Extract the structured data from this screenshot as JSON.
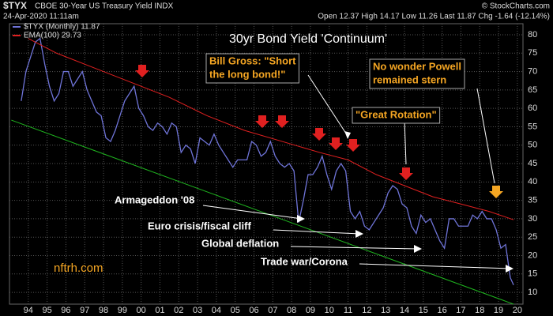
{
  "chart_data": {
    "type": "line",
    "symbol": "$TYX",
    "header_name": "CBOE 30-Year US Treasury Yield INDX",
    "date": "24-Apr-2020 11:11am",
    "quote": "Open 12.37 High 14.17 Low 11.26 Last 11.87 Chg -1.64 (-12.14%)",
    "source": "© StockCharts.com",
    "title": "30yr Bond Yield 'Continuum'",
    "watermark": "nftrh.com",
    "annotations": [
      {
        "lines": [
          "Bill Gross: \"Short",
          "the long bond!\""
        ],
        "style": "boxed"
      },
      {
        "lines": [
          "No wonder Powell",
          "remained stern"
        ],
        "style": "boxed"
      },
      {
        "lines": [
          "\"Great Rotation\""
        ],
        "style": "boxed"
      },
      {
        "lines": [
          "Armageddon '08"
        ],
        "style": "plain"
      },
      {
        "lines": [
          "Euro crisis/fiscal cliff"
        ],
        "style": "plain"
      },
      {
        "lines": [
          "Global deflation"
        ],
        "style": "plain"
      },
      {
        "lines": [
          "Trade war/Corona"
        ],
        "style": "plain"
      }
    ],
    "xlim": [
      1993.5,
      2020.8
    ],
    "ylim": [
      6.8,
      83
    ],
    "grid": true,
    "xticks": [
      {
        "value": 1994.5,
        "label": "94"
      },
      {
        "value": 1995.5,
        "label": "95"
      },
      {
        "value": 1996.5,
        "label": "96"
      },
      {
        "value": 1997.5,
        "label": "97"
      },
      {
        "value": 1998.5,
        "label": "98"
      },
      {
        "value": 1999.5,
        "label": "99"
      },
      {
        "value": 2000.5,
        "label": "00"
      },
      {
        "value": 2001.5,
        "label": "01"
      },
      {
        "value": 2002.5,
        "label": "02"
      },
      {
        "value": 2003.5,
        "label": "03"
      },
      {
        "value": 2004.5,
        "label": "04"
      },
      {
        "value": 2005.5,
        "label": "05"
      },
      {
        "value": 2006.5,
        "label": "06"
      },
      {
        "value": 2007.5,
        "label": "07"
      },
      {
        "value": 2008.5,
        "label": "08"
      },
      {
        "value": 2009.5,
        "label": "09"
      },
      {
        "value": 2010.5,
        "label": "10"
      },
      {
        "value": 2011.5,
        "label": "11"
      },
      {
        "value": 2012.5,
        "label": "12"
      },
      {
        "value": 2013.5,
        "label": "13"
      },
      {
        "value": 2014.5,
        "label": "14"
      },
      {
        "value": 2015.5,
        "label": "15"
      },
      {
        "value": 2016.5,
        "label": "16"
      },
      {
        "value": 2017.5,
        "label": "17"
      },
      {
        "value": 2018.5,
        "label": "18"
      },
      {
        "value": 2019.5,
        "label": "19"
      },
      {
        "value": 2020.5,
        "label": "20"
      }
    ],
    "yticks": [
      10,
      15,
      20,
      25,
      30,
      35,
      40,
      45,
      50,
      55,
      60,
      65,
      70,
      75,
      80
    ],
    "series": [
      {
        "name": "$TYX (Monthly) 11.87",
        "color": "#6f74d8",
        "x": [
          1994.125,
          1994.375,
          1994.625,
          1994.875,
          1995.125,
          1995.375,
          1995.625,
          1995.875,
          1996.125,
          1996.375,
          1996.625,
          1996.875,
          1997.125,
          1997.375,
          1997.625,
          1997.875,
          1998.125,
          1998.375,
          1998.625,
          1998.875,
          1999.125,
          1999.375,
          1999.625,
          1999.875,
          2000.125,
          2000.375,
          2000.625,
          2000.875,
          2001.125,
          2001.375,
          2001.625,
          2001.875,
          2002.125,
          2002.375,
          2002.625,
          2002.875,
          2003.125,
          2003.375,
          2003.625,
          2003.875,
          2004.125,
          2004.375,
          2004.625,
          2004.875,
          2005.125,
          2005.375,
          2005.625,
          2005.875,
          2006.125,
          2006.375,
          2006.625,
          2006.875,
          2007.125,
          2007.375,
          2007.625,
          2007.875,
          2008.125,
          2008.375,
          2008.625,
          2008.875,
          2009.125,
          2009.375,
          2009.625,
          2009.875,
          2010.125,
          2010.375,
          2010.625,
          2010.875,
          2011.125,
          2011.375,
          2011.625,
          2011.875,
          2012.125,
          2012.375,
          2012.625,
          2012.875,
          2013.125,
          2013.375,
          2013.625,
          2013.875,
          2014.125,
          2014.375,
          2014.625,
          2014.875,
          2015.125,
          2015.375,
          2015.625,
          2015.875,
          2016.125,
          2016.375,
          2016.625,
          2016.875,
          2017.125,
          2017.375,
          2017.625,
          2017.875,
          2018.125,
          2018.375,
          2018.625,
          2018.875,
          2019.125,
          2019.375,
          2019.625,
          2019.875,
          2020.125,
          2020.3
        ],
        "values": [
          62,
          70,
          74,
          78,
          79,
          72,
          66,
          62,
          64,
          70,
          70,
          66,
          68,
          70,
          65,
          62,
          59,
          58,
          52,
          51,
          54,
          58,
          62,
          64,
          66,
          60,
          58,
          55,
          54,
          56,
          55,
          53,
          56,
          55,
          48,
          50,
          49,
          45,
          52,
          51,
          50,
          53,
          50,
          48,
          46,
          44,
          46,
          46,
          46,
          51,
          50,
          47,
          48,
          51,
          47,
          45,
          44,
          45,
          43,
          29,
          35,
          42,
          42,
          44,
          47,
          42,
          38,
          43,
          45,
          43,
          32,
          30,
          32,
          28,
          27,
          29,
          31,
          33,
          37,
          39,
          38,
          34,
          33,
          28,
          26,
          31,
          29,
          30,
          27,
          24,
          22,
          30,
          30,
          28,
          28,
          28,
          31,
          30,
          32,
          30,
          30,
          27,
          22,
          23,
          14,
          12
        ]
      },
      {
        "name": "EMA(100) 29.73",
        "color": "#e02020",
        "x": [
          1994.5,
          1996,
          1998,
          2000,
          2002,
          2004,
          2006,
          2008,
          2010,
          2011.5,
          2013,
          2014.5,
          2016,
          2017.5,
          2019,
          2020.3
        ],
        "values": [
          79,
          75,
          71,
          67,
          63,
          58,
          54,
          51,
          48,
          46,
          42,
          39,
          36,
          34,
          32,
          29.73
        ]
      },
      {
        "name": null,
        "color": "#1fb51f",
        "x": [
          1993.6,
          2020.3
        ],
        "values": [
          56.8,
          6.8
        ]
      }
    ]
  }
}
